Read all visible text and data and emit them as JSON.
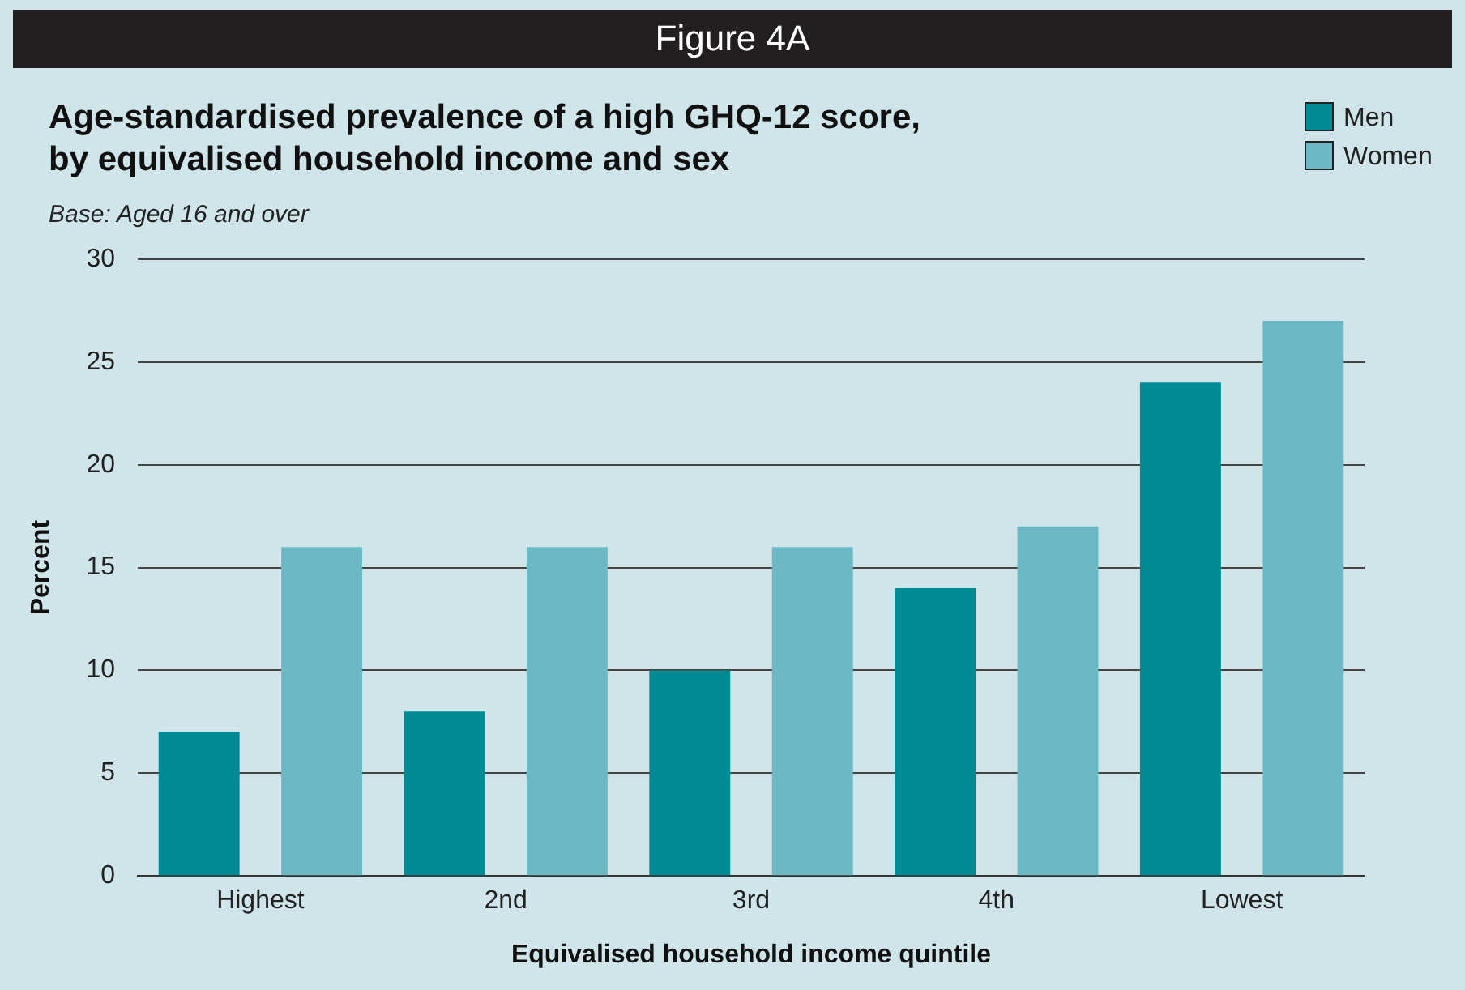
{
  "chart_data": {
    "type": "bar",
    "title": "Age-standardised prevalence of a high GHQ-12 score,\nby equivalised household income and sex",
    "subtitle": "Base: Aged 16 and over",
    "annotations": [
      "Figure 4A"
    ],
    "xlabel": "Equivalised household income quintile",
    "ylabel": "Percent",
    "categories": [
      "Highest",
      "2nd",
      "3rd",
      "4th",
      "Lowest"
    ],
    "series": [
      {
        "name": "Men",
        "color": "#008b95",
        "values": [
          7,
          8,
          10,
          14,
          24
        ]
      },
      {
        "name": "Women",
        "color": "#6bb9c4",
        "values": [
          16,
          16,
          16,
          17,
          27
        ]
      }
    ],
    "ylim": [
      0,
      30
    ],
    "yticks": [
      0,
      5,
      10,
      15,
      20,
      25,
      30
    ],
    "grid": "y",
    "legend": "top right"
  }
}
